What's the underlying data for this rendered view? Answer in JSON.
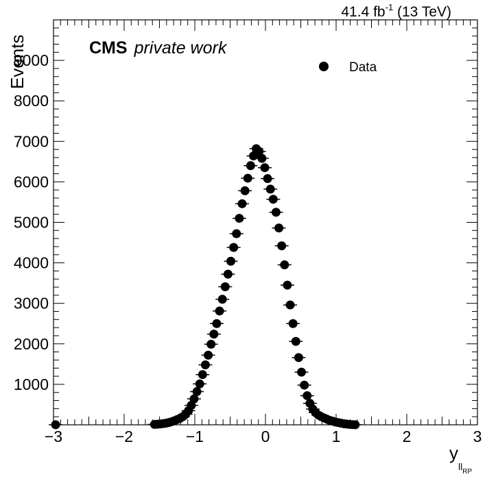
{
  "chart_data": {
    "type": "scatter",
    "title": "",
    "header": {
      "lumi": "41.4 fb",
      "lumi_sup": "-1",
      "energy": " (13 TeV)"
    },
    "label": {
      "experiment": "CMS",
      "extra": "private work"
    },
    "xlabel": {
      "main": "y",
      "sub": "ll",
      "subsub": "RP"
    },
    "ylabel": "Events",
    "xlim": [
      -3,
      3
    ],
    "ylim": [
      0,
      10000
    ],
    "xticks": [
      "−3",
      "−2",
      "−1",
      "0",
      "1",
      "2",
      "3"
    ],
    "yticks": [
      "1000",
      "2000",
      "3000",
      "4000",
      "5000",
      "6000",
      "7000",
      "8000",
      "9000"
    ],
    "legend": {
      "entry": "Data",
      "position": "top-right"
    },
    "grid": false,
    "series": [
      {
        "name": "Data",
        "x": [
          -2.97,
          -1.57,
          -1.53,
          -1.49,
          -1.45,
          -1.41,
          -1.37,
          -1.33,
          -1.29,
          -1.25,
          -1.21,
          -1.17,
          -1.13,
          -1.09,
          -1.05,
          -1.01,
          -0.97,
          -0.93,
          -0.89,
          -0.85,
          -0.81,
          -0.77,
          -0.73,
          -0.69,
          -0.65,
          -0.61,
          -0.57,
          -0.53,
          -0.49,
          -0.45,
          -0.41,
          -0.37,
          -0.33,
          -0.29,
          -0.25,
          -0.21,
          -0.17,
          -0.13,
          -0.09,
          -0.05,
          -0.01,
          0.03,
          0.07,
          0.11,
          0.15,
          0.19,
          0.23,
          0.27,
          0.31,
          0.35,
          0.39,
          0.43,
          0.47,
          0.51,
          0.55,
          0.59,
          0.63,
          0.67,
          0.71,
          0.75,
          0.79,
          0.83,
          0.87,
          0.91,
          0.95,
          0.99,
          1.03,
          1.07,
          1.11,
          1.15,
          1.19,
          1.23,
          1.27
        ],
        "y": [
          2,
          10,
          15,
          20,
          30,
          40,
          55,
          75,
          100,
          130,
          160,
          200,
          260,
          350,
          480,
          640,
          820,
          1010,
          1240,
          1480,
          1720,
          1990,
          2240,
          2500,
          2810,
          3100,
          3410,
          3720,
          4040,
          4380,
          4720,
          5100,
          5460,
          5780,
          6090,
          6400,
          6640,
          6820,
          6750,
          6580,
          6350,
          6080,
          5820,
          5570,
          5250,
          4860,
          4420,
          3950,
          3450,
          2960,
          2500,
          2060,
          1660,
          1300,
          980,
          720,
          530,
          390,
          300,
          240,
          200,
          170,
          140,
          110,
          90,
          70,
          55,
          40,
          28,
          18,
          10,
          5,
          2
        ]
      }
    ]
  }
}
